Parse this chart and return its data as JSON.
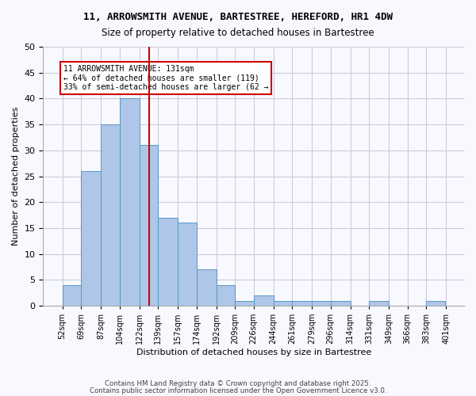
{
  "title1": "11, ARROWSMITH AVENUE, BARTESTREE, HEREFORD, HR1 4DW",
  "title2": "Size of property relative to detached houses in Bartestree",
  "xlabel": "Distribution of detached houses by size in Bartestree",
  "ylabel": "Number of detached properties",
  "bin_lefts": [
    52,
    69,
    87,
    104,
    122,
    139,
    157,
    174,
    192,
    209,
    226,
    244,
    261,
    279,
    296,
    314,
    331,
    349,
    366,
    383
  ],
  "bin_labels": [
    "52sqm",
    "69sqm",
    "87sqm",
    "104sqm",
    "122sqm",
    "139sqm",
    "157sqm",
    "174sqm",
    "192sqm",
    "209sqm",
    "226sqm",
    "244sqm",
    "261sqm",
    "279sqm",
    "296sqm",
    "314sqm",
    "331sqm",
    "349sqm",
    "366sqm",
    "383sqm",
    "401sqm"
  ],
  "tick_positions": [
    52,
    69,
    87,
    104,
    122,
    139,
    157,
    174,
    192,
    209,
    226,
    244,
    261,
    279,
    296,
    314,
    331,
    349,
    366,
    383,
    401
  ],
  "values": [
    4,
    26,
    35,
    40,
    31,
    17,
    16,
    7,
    4,
    1,
    2,
    1,
    1,
    1,
    1,
    0,
    1,
    0,
    0,
    1
  ],
  "bar_color": "#aec6e8",
  "bar_edge_color": "#5a96c8",
  "property_size": 131,
  "vline_color": "#cc0000",
  "ylim": [
    0,
    50
  ],
  "yticks": [
    0,
    5,
    10,
    15,
    20,
    25,
    30,
    35,
    40,
    45,
    50
  ],
  "annotation_text": "11 ARROWSMITH AVENUE: 131sqm\n← 64% of detached houses are smaller (119)\n33% of semi-detached houses are larger (62 →",
  "annotation_box_color": "#ffffff",
  "annotation_box_edge": "#cc0000",
  "footer1": "Contains HM Land Registry data © Crown copyright and database right 2025.",
  "footer2": "Contains public sector information licensed under the Open Government Licence v3.0.",
  "background_color": "#f8f8ff",
  "grid_color": "#ccccdd"
}
